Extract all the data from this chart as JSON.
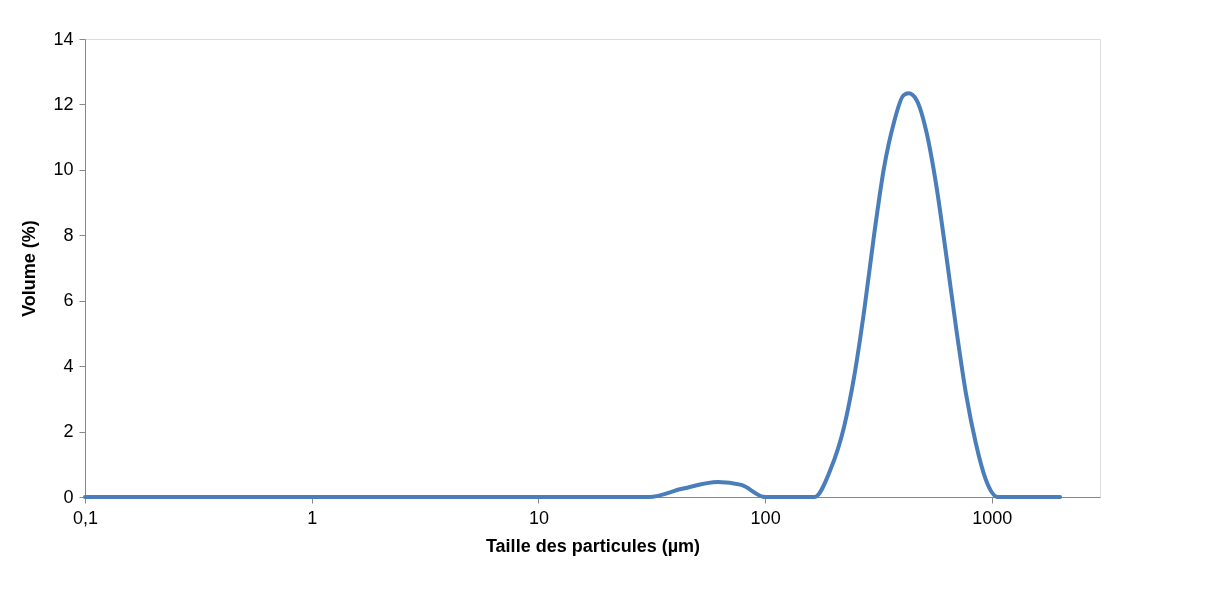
{
  "chart_data": {
    "type": "line",
    "xlabel": "Taille des particules (µm)",
    "ylabel": "Volume (%)",
    "log": "x",
    "grid": false,
    "marker": "none",
    "line_style": "solid",
    "xlim": [
      0.1,
      3000
    ],
    "xticks": [
      {
        "value": 0.1,
        "label": "0,1"
      },
      1,
      10,
      100,
      1000
    ],
    "ylim": [
      0,
      14
    ],
    "yticks": [
      0,
      2,
      4,
      6,
      8,
      10,
      12,
      14
    ],
    "series": [
      {
        "color": "#4a7ebb",
        "x": [
          0.1,
          1,
          10,
          30.8,
          43,
          62,
          78.5,
          100,
          159,
          165,
          194,
          223,
          247,
          274,
          302,
          334,
          370,
          408,
          430,
          466,
          515,
          569,
          630,
          697,
          769,
          851,
          942,
          1062,
          2000
        ],
        "values": [
          0,
          0,
          0,
          0,
          0.25,
          0.46,
          0.37,
          0,
          0,
          0,
          0.83,
          2.15,
          3.68,
          5.74,
          7.98,
          10.04,
          11.45,
          12.28,
          12.34,
          12.13,
          11.15,
          9.52,
          7.37,
          5.13,
          3.16,
          1.63,
          0.52,
          0,
          0
        ]
      }
    ]
  }
}
